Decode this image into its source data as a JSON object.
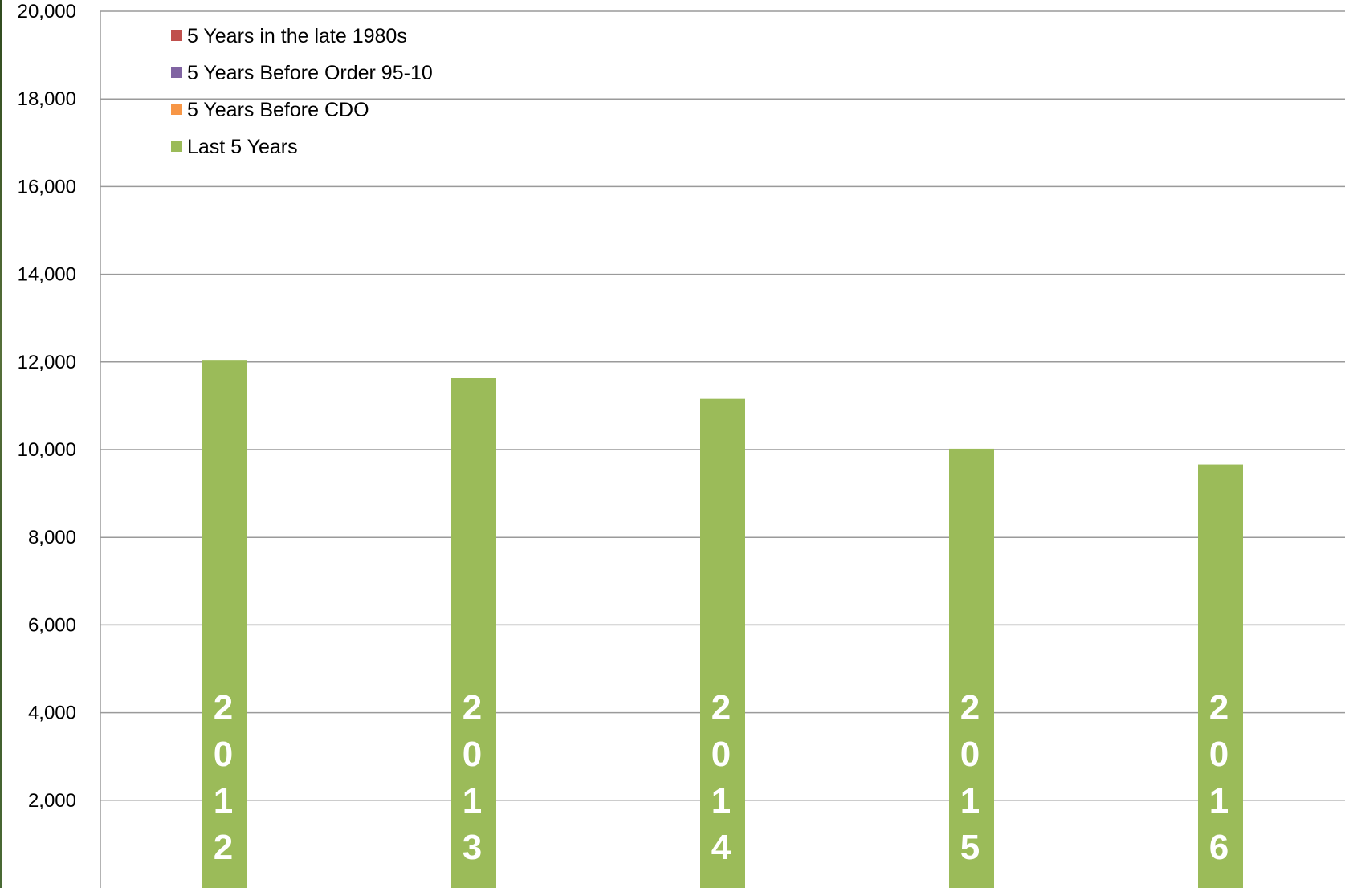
{
  "chart_data": {
    "type": "bar",
    "categories": [
      "2012",
      "2013",
      "2014",
      "2015",
      "2016"
    ],
    "series": [
      {
        "name": "5 Years in the late 1980s",
        "color": "#c0504d",
        "values": [
          null,
          null,
          null,
          null,
          null
        ]
      },
      {
        "name": "5 Years Before Order 95-10",
        "color": "#8064a2",
        "values": [
          null,
          null,
          null,
          null,
          null
        ]
      },
      {
        "name": "5 Years Before CDO",
        "color": "#f79646",
        "values": [
          null,
          null,
          null,
          null,
          null
        ]
      },
      {
        "name": "Last 5 Years",
        "color": "#9bbb59",
        "values": [
          12030,
          11630,
          11160,
          10020,
          9660
        ]
      }
    ],
    "ylim": [
      0,
      20000
    ],
    "yticks": [
      "2,000",
      "4,000",
      "6,000",
      "8,000",
      "10,000",
      "12,000",
      "14,000",
      "16,000",
      "18,000",
      "20,000"
    ],
    "grid": true,
    "legend_position": "top-left",
    "title": "",
    "xlabel": "",
    "ylabel": ""
  }
}
